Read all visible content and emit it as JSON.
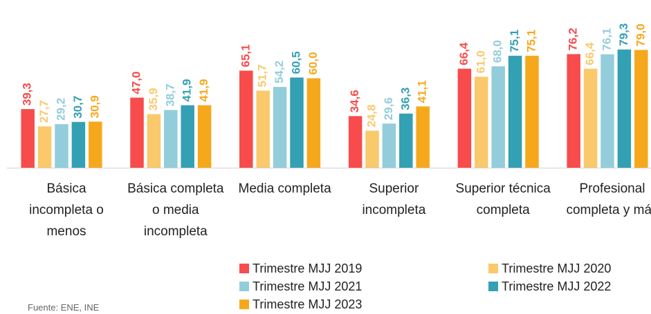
{
  "chart_data": {
    "type": "bar",
    "categories": [
      "Básica incompleta o menos",
      "Básica completa o media incompleta",
      "Media completa",
      "Superior incompleta",
      "Superior técnica completa",
      "Profesional completa y más"
    ],
    "series": [
      {
        "name": "Trimestre MJJ 2019",
        "color": "#f84b4b",
        "values": [
          39.3,
          47.0,
          65.1,
          34.6,
          66.4,
          76.2
        ],
        "value_labels": [
          "39,3",
          "47,0",
          "65,1",
          "34,6",
          "66,4",
          "76,2"
        ]
      },
      {
        "name": "Trimestre MJJ 2020",
        "color": "#f9c96c",
        "values": [
          27.7,
          35.9,
          51.7,
          24.8,
          61.0,
          66.4
        ],
        "value_labels": [
          "27,7",
          "35,9",
          "51,7",
          "24,8",
          "61,0",
          "66,4"
        ]
      },
      {
        "name": "Trimestre MJJ 2021",
        "color": "#93cddb",
        "values": [
          29.2,
          38.7,
          54.2,
          29.6,
          68.0,
          76.1
        ],
        "value_labels": [
          "29,2",
          "38,7",
          "54,2",
          "29,6",
          "68,0",
          "76,1"
        ]
      },
      {
        "name": "Trimestre MJJ 2022",
        "color": "#33a0b4",
        "values": [
          30.7,
          41.9,
          60.5,
          36.3,
          75.1,
          79.3
        ],
        "value_labels": [
          "30,7",
          "41,9",
          "60,5",
          "36,3",
          "75,1",
          "79,3"
        ]
      },
      {
        "name": "Trimestre MJJ 2023",
        "color": "#f6a81c",
        "values": [
          30.9,
          41.9,
          60.0,
          41.1,
          75.1,
          79.0
        ],
        "value_labels": [
          "30,9",
          "41,9",
          "60,0",
          "41,1",
          "75,1",
          "79,0"
        ]
      }
    ],
    "source": "Fuente: ENE, INE"
  }
}
